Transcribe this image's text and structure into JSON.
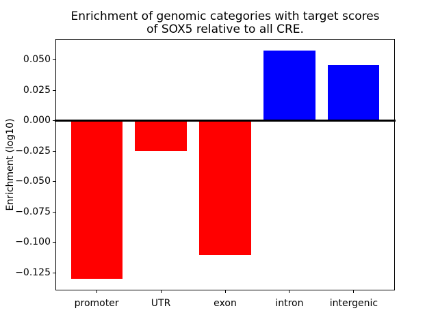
{
  "chart_data": {
    "type": "bar",
    "title": "Enrichment of genomic categories with target scores\nof SOX5 relative to all CRE.",
    "title_lines": [
      "Enrichment of genomic categories with target scores",
      "of SOX5 relative to all CRE."
    ],
    "xlabel": "",
    "ylabel": "Enrichment (log10)",
    "categories": [
      "promoter",
      "UTR",
      "exon",
      "intron",
      "intergenic"
    ],
    "values": [
      -0.13,
      -0.0247,
      -0.11,
      0.058,
      0.046
    ],
    "bar_colors": [
      "#ff0000",
      "#ff0000",
      "#ff0000",
      "#0000ff",
      "#0000ff"
    ],
    "negative_color": "#ff0000",
    "positive_color": "#0000ff",
    "ylim": [
      -0.1394,
      0.0674
    ],
    "xlim": [
      -0.64,
      4.64
    ],
    "bar_width": 0.8,
    "yticks": [
      0.05,
      0.025,
      0.0,
      -0.025,
      -0.05,
      -0.075,
      -0.1,
      -0.125
    ],
    "ytick_labels": [
      "0.050",
      "0.025",
      "0.000",
      "−0.025",
      "−0.050",
      "−0.075",
      "−0.100",
      "−0.125"
    ],
    "grid": false,
    "legend": null,
    "zero_line": true,
    "zero_line_color": "#000000",
    "axis_color": "#000000",
    "background_color": "#ffffff"
  }
}
